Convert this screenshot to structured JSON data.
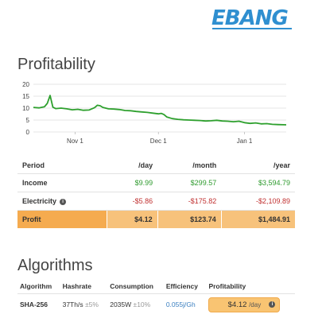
{
  "brand": {
    "logo_text": "EBANG",
    "color": "#2f8fd0"
  },
  "profitability": {
    "title": "Profitability",
    "chart_data": {
      "type": "line",
      "y_ticks": [
        "20",
        "15",
        "10",
        "5",
        "0"
      ],
      "ylim": [
        0,
        20
      ],
      "x_ticks": [
        "Nov 1",
        "Dec 1",
        "Jan 1"
      ],
      "x_tick_days": [
        15,
        45,
        76
      ],
      "x_range_days": [
        0,
        91
      ],
      "grid": true,
      "series": [
        {
          "color": "#2ea02e",
          "points": [
            [
              0,
              10.3
            ],
            [
              2,
              10.1
            ],
            [
              4,
              10.6
            ],
            [
              5,
              12.0
            ],
            [
              6,
              15.3
            ],
            [
              7,
              10.4
            ],
            [
              8,
              9.8
            ],
            [
              10,
              10.0
            ],
            [
              12,
              9.7
            ],
            [
              14,
              9.3
            ],
            [
              16,
              9.5
            ],
            [
              18,
              9.1
            ],
            [
              20,
              9.2
            ],
            [
              22,
              10.2
            ],
            [
              23,
              11.2
            ],
            [
              24,
              11.0
            ],
            [
              25,
              10.3
            ],
            [
              27,
              9.7
            ],
            [
              29,
              9.6
            ],
            [
              31,
              9.4
            ],
            [
              33,
              9.0
            ],
            [
              35,
              8.9
            ],
            [
              37,
              8.6
            ],
            [
              39,
              8.4
            ],
            [
              41,
              8.2
            ],
            [
              43,
              7.9
            ],
            [
              45,
              7.6
            ],
            [
              46,
              7.8
            ],
            [
              47,
              7.3
            ],
            [
              48,
              6.3
            ],
            [
              50,
              5.6
            ],
            [
              52,
              5.3
            ],
            [
              54,
              5.1
            ],
            [
              56,
              5.0
            ],
            [
              58,
              4.9
            ],
            [
              60,
              4.8
            ],
            [
              62,
              4.6
            ],
            [
              64,
              4.7
            ],
            [
              66,
              4.9
            ],
            [
              68,
              4.6
            ],
            [
              70,
              4.5
            ],
            [
              72,
              4.3
            ],
            [
              74,
              4.5
            ],
            [
              76,
              3.9
            ],
            [
              78,
              3.6
            ],
            [
              80,
              3.8
            ],
            [
              82,
              3.4
            ],
            [
              84,
              3.5
            ],
            [
              86,
              3.2
            ],
            [
              88,
              3.1
            ],
            [
              91,
              3.0
            ]
          ]
        }
      ]
    },
    "table": {
      "headers": [
        "Period",
        "/day",
        "/month",
        "/year"
      ],
      "income": {
        "label": "Income",
        "day": "$9.99",
        "month": "$299.57",
        "year": "$3,594.79"
      },
      "electricity": {
        "label": "Electricity",
        "info_icon": "i",
        "day": "-$5.86",
        "month": "-$175.82",
        "year": "-$2,109.89"
      },
      "profit": {
        "label": "Profit",
        "day": "$4.12",
        "month": "$123.74",
        "year": "$1,484.91"
      }
    }
  },
  "algorithms": {
    "title": "Algorithms",
    "headers": [
      "Algorithm",
      "Hashrate",
      "Consumption",
      "Efficiency",
      "Profitability"
    ],
    "rows": [
      {
        "algorithm": "SHA-256",
        "hashrate": "37Th/s",
        "hashrate_var": "±5%",
        "consumption": "2035W",
        "consumption_var": "±10%",
        "efficiency": "0.055j/Gh",
        "profit": "$4.12",
        "profit_unit": "/day",
        "info_icon": "i"
      }
    ]
  }
}
